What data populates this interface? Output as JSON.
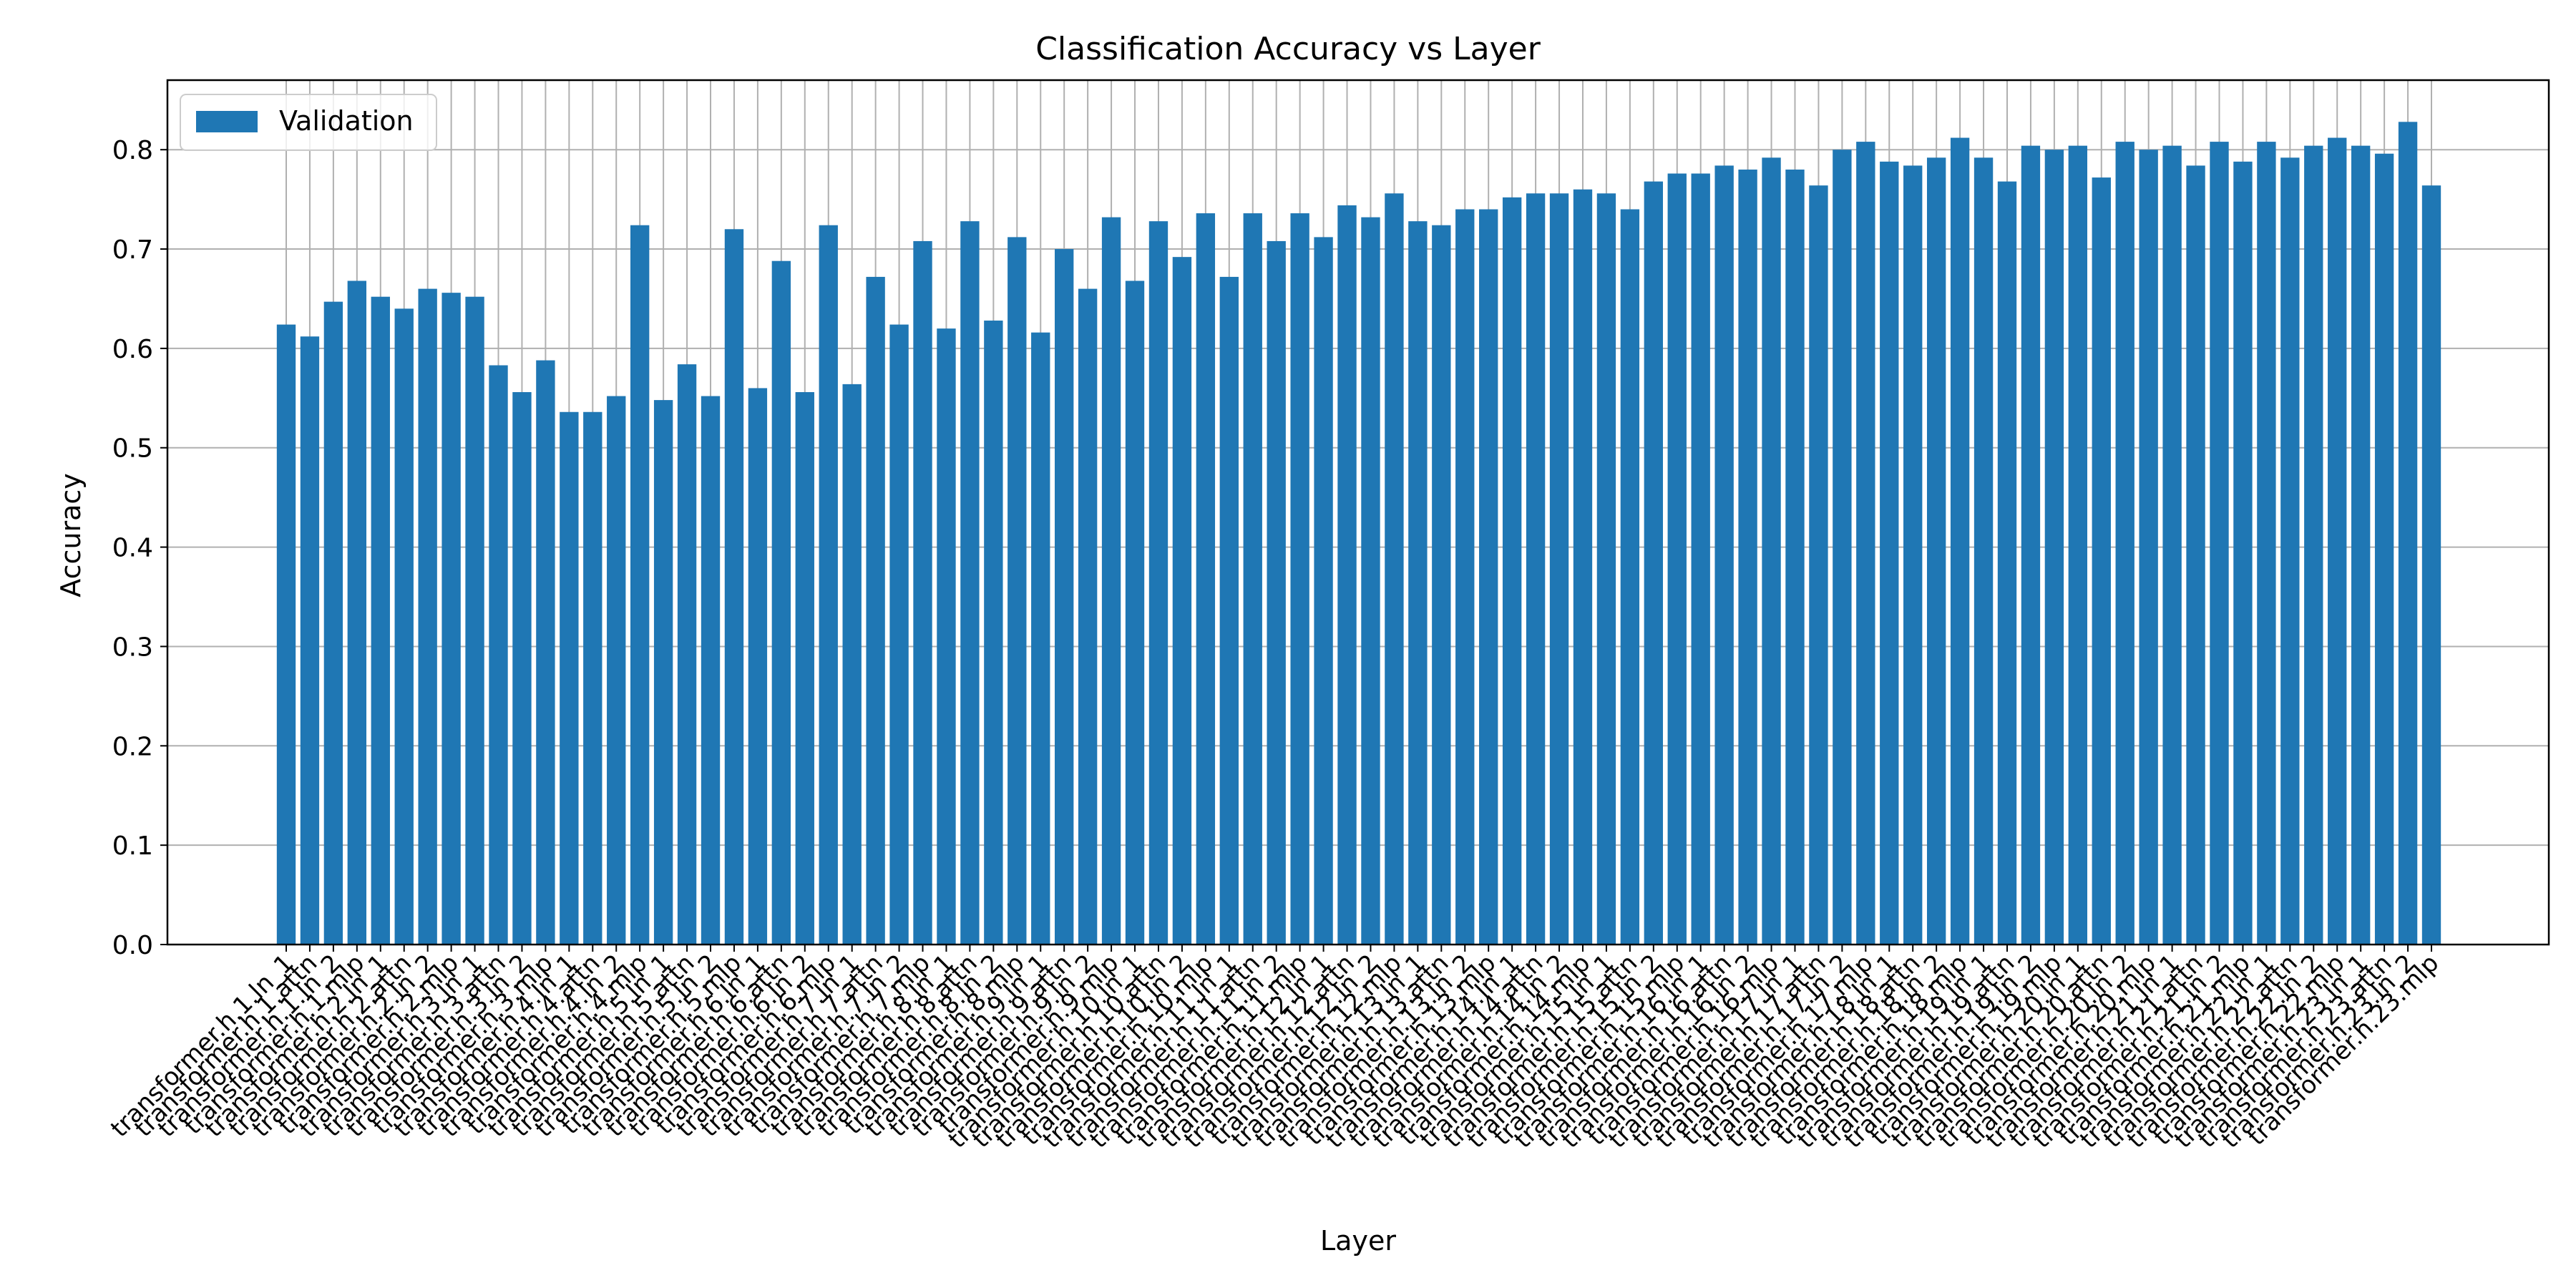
{
  "chart_data": {
    "type": "bar",
    "title": "Classification Accuracy vs Layer",
    "xlabel": "Layer",
    "ylabel": "Accuracy",
    "ylim": [
      0,
      0.87
    ],
    "yticks": [
      "0.0",
      "0.1",
      "0.2",
      "0.3",
      "0.4",
      "0.5",
      "0.6",
      "0.7",
      "0.8"
    ],
    "grid": true,
    "legend_position": "upper left",
    "color": "#1f77b4",
    "categories": [
      "transformer.h.1.ln_1",
      "transformer.h.1.attn",
      "transformer.h.1.ln_2",
      "transformer.h.1.mlp",
      "transformer.h.2.ln_1",
      "transformer.h.2.attn",
      "transformer.h.2.ln_2",
      "transformer.h.2.mlp",
      "transformer.h.3.ln_1",
      "transformer.h.3.attn",
      "transformer.h.3.ln_2",
      "transformer.h.3.mlp",
      "transformer.h.4.ln_1",
      "transformer.h.4.attn",
      "transformer.h.4.ln_2",
      "transformer.h.4.mlp",
      "transformer.h.5.ln_1",
      "transformer.h.5.attn",
      "transformer.h.5.ln_2",
      "transformer.h.5.mlp",
      "transformer.h.6.ln_1",
      "transformer.h.6.attn",
      "transformer.h.6.ln_2",
      "transformer.h.6.mlp",
      "transformer.h.7.ln_1",
      "transformer.h.7.attn",
      "transformer.h.7.ln_2",
      "transformer.h.7.mlp",
      "transformer.h.8.ln_1",
      "transformer.h.8.attn",
      "transformer.h.8.ln_2",
      "transformer.h.8.mlp",
      "transformer.h.9.ln_1",
      "transformer.h.9.attn",
      "transformer.h.9.ln_2",
      "transformer.h.9.mlp",
      "transformer.h.10.ln_1",
      "transformer.h.10.attn",
      "transformer.h.10.ln_2",
      "transformer.h.10.mlp",
      "transformer.h.11.ln_1",
      "transformer.h.11.attn",
      "transformer.h.11.ln_2",
      "transformer.h.11.mlp",
      "transformer.h.12.ln_1",
      "transformer.h.12.attn",
      "transformer.h.12.ln_2",
      "transformer.h.12.mlp",
      "transformer.h.13.ln_1",
      "transformer.h.13.attn",
      "transformer.h.13.ln_2",
      "transformer.h.13.mlp",
      "transformer.h.14.ln_1",
      "transformer.h.14.attn",
      "transformer.h.14.ln_2",
      "transformer.h.14.mlp",
      "transformer.h.15.ln_1",
      "transformer.h.15.attn",
      "transformer.h.15.ln_2",
      "transformer.h.15.mlp",
      "transformer.h.16.ln_1",
      "transformer.h.16.attn",
      "transformer.h.16.ln_2",
      "transformer.h.16.mlp",
      "transformer.h.17.ln_1",
      "transformer.h.17.attn",
      "transformer.h.17.ln_2",
      "transformer.h.17.mlp",
      "transformer.h.18.ln_1",
      "transformer.h.18.attn",
      "transformer.h.18.ln_2",
      "transformer.h.18.mlp",
      "transformer.h.19.ln_1",
      "transformer.h.19.attn",
      "transformer.h.19.ln_2",
      "transformer.h.19.mlp",
      "transformer.h.20.ln_1",
      "transformer.h.20.attn",
      "transformer.h.20.ln_2",
      "transformer.h.20.mlp",
      "transformer.h.21.ln_1",
      "transformer.h.21.attn",
      "transformer.h.21.ln_2",
      "transformer.h.21.mlp",
      "transformer.h.22.ln_1",
      "transformer.h.22.attn",
      "transformer.h.22.ln_2",
      "transformer.h.22.mlp",
      "transformer.h.23.ln_1",
      "transformer.h.23.attn",
      "transformer.h.23.ln_2",
      "transformer.h.23.mlp"
    ],
    "series": [
      {
        "name": "Validation",
        "values": [
          0.624,
          0.612,
          0.647,
          0.668,
          0.652,
          0.64,
          0.66,
          0.656,
          0.652,
          0.583,
          0.556,
          0.588,
          0.536,
          0.536,
          0.552,
          0.724,
          0.548,
          0.584,
          0.552,
          0.72,
          0.56,
          0.688,
          0.556,
          0.724,
          0.564,
          0.672,
          0.624,
          0.708,
          0.62,
          0.728,
          0.628,
          0.712,
          0.616,
          0.7,
          0.66,
          0.732,
          0.668,
          0.728,
          0.692,
          0.736,
          0.672,
          0.736,
          0.708,
          0.736,
          0.712,
          0.744,
          0.732,
          0.756,
          0.728,
          0.724,
          0.74,
          0.74,
          0.752,
          0.756,
          0.756,
          0.76,
          0.756,
          0.74,
          0.768,
          0.776,
          0.776,
          0.784,
          0.78,
          0.792,
          0.78,
          0.764,
          0.8,
          0.808,
          0.788,
          0.784,
          0.792,
          0.812,
          0.792,
          0.768,
          0.804,
          0.8,
          0.804,
          0.772,
          0.808,
          0.8,
          0.804,
          0.784,
          0.808,
          0.788,
          0.808,
          0.792,
          0.804,
          0.812,
          0.804,
          0.796,
          0.828,
          0.764
        ]
      }
    ]
  }
}
